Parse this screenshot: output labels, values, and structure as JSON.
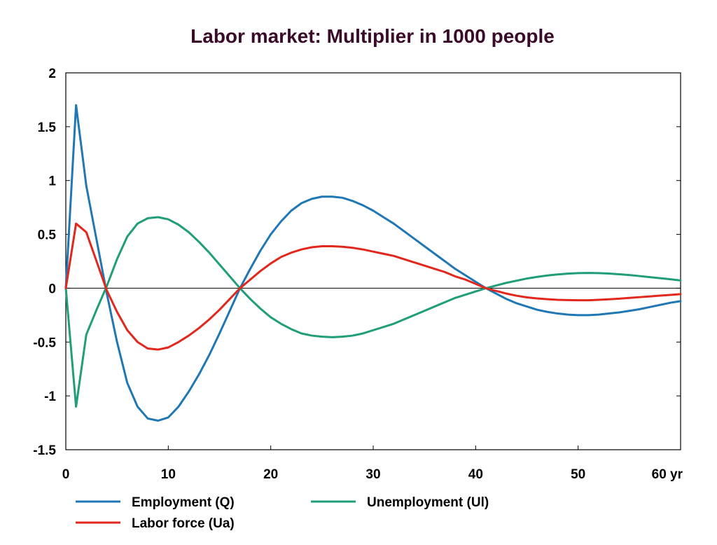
{
  "chart_data": {
    "type": "line",
    "title": "Labor market: Multiplier in 1000 people",
    "xlabel": "",
    "ylabel": "",
    "x_unit_suffix": " yr",
    "xlim": [
      0,
      60
    ],
    "ylim": [
      -1.5,
      2
    ],
    "x_ticks": [
      0,
      10,
      20,
      30,
      40,
      50,
      60
    ],
    "y_ticks": [
      2,
      1.5,
      1,
      0.5,
      0,
      -0.5,
      -1,
      -1.5
    ],
    "y_tick_labels": [
      "2",
      "1.5",
      "1",
      "0.5",
      "0",
      "-0.5",
      "-1",
      "-1.5"
    ],
    "x_tick_labels": [
      "0",
      "10",
      "20",
      "30",
      "40",
      "50",
      "60 yr"
    ],
    "zero_line": true,
    "grid": false,
    "legend_position": "bottom",
    "x": [
      0,
      1,
      2,
      3,
      4,
      5,
      6,
      7,
      8,
      9,
      10,
      11,
      12,
      13,
      14,
      15,
      16,
      17,
      18,
      19,
      20,
      21,
      22,
      23,
      24,
      25,
      26,
      27,
      28,
      29,
      30,
      31,
      32,
      33,
      34,
      35,
      36,
      37,
      38,
      39,
      40,
      41,
      42,
      43,
      44,
      45,
      46,
      47,
      48,
      49,
      50,
      51,
      52,
      53,
      54,
      55,
      56,
      57,
      58,
      59,
      60
    ],
    "series": [
      {
        "name": "Employment (Q)",
        "color": "#1f77b4",
        "values": [
          0,
          1.7,
          0.95,
          0.45,
          -0.05,
          -0.5,
          -0.88,
          -1.1,
          -1.21,
          -1.23,
          -1.2,
          -1.1,
          -0.96,
          -0.8,
          -0.62,
          -0.42,
          -0.21,
          0,
          0.18,
          0.35,
          0.5,
          0.62,
          0.72,
          0.79,
          0.83,
          0.85,
          0.85,
          0.84,
          0.81,
          0.77,
          0.72,
          0.66,
          0.6,
          0.53,
          0.46,
          0.39,
          0.32,
          0.25,
          0.18,
          0.12,
          0.06,
          0,
          -0.05,
          -0.1,
          -0.14,
          -0.17,
          -0.2,
          -0.22,
          -0.235,
          -0.245,
          -0.25,
          -0.25,
          -0.245,
          -0.235,
          -0.225,
          -0.21,
          -0.195,
          -0.175,
          -0.155,
          -0.135,
          -0.12
        ]
      },
      {
        "name": "Unemployment (Ul)",
        "color": "#1f9e78",
        "values": [
          0,
          -1.1,
          -0.43,
          -0.2,
          0.02,
          0.27,
          0.48,
          0.6,
          0.65,
          0.66,
          0.64,
          0.59,
          0.52,
          0.43,
          0.33,
          0.22,
          0.11,
          0,
          -0.1,
          -0.19,
          -0.27,
          -0.33,
          -0.38,
          -0.42,
          -0.44,
          -0.45,
          -0.455,
          -0.45,
          -0.44,
          -0.42,
          -0.39,
          -0.36,
          -0.33,
          -0.29,
          -0.25,
          -0.21,
          -0.17,
          -0.13,
          -0.09,
          -0.06,
          -0.03,
          0,
          0.025,
          0.05,
          0.07,
          0.09,
          0.105,
          0.118,
          0.128,
          0.135,
          0.14,
          0.142,
          0.14,
          0.136,
          0.13,
          0.122,
          0.113,
          0.103,
          0.093,
          0.083,
          0.072
        ]
      },
      {
        "name": "Labor force (Ua)",
        "color": "#e2271d",
        "values": [
          0,
          0.6,
          0.52,
          0.25,
          -0.02,
          -0.22,
          -0.39,
          -0.5,
          -0.56,
          -0.57,
          -0.55,
          -0.5,
          -0.44,
          -0.37,
          -0.29,
          -0.2,
          -0.1,
          0,
          0.08,
          0.16,
          0.23,
          0.29,
          0.33,
          0.36,
          0.38,
          0.39,
          0.39,
          0.385,
          0.375,
          0.36,
          0.34,
          0.32,
          0.3,
          0.27,
          0.24,
          0.21,
          0.18,
          0.15,
          0.11,
          0.08,
          0.04,
          0,
          -0.025,
          -0.05,
          -0.07,
          -0.085,
          -0.095,
          -0.102,
          -0.108,
          -0.11,
          -0.112,
          -0.112,
          -0.108,
          -0.103,
          -0.097,
          -0.09,
          -0.083,
          -0.076,
          -0.069,
          -0.062,
          -0.055
        ]
      }
    ]
  }
}
